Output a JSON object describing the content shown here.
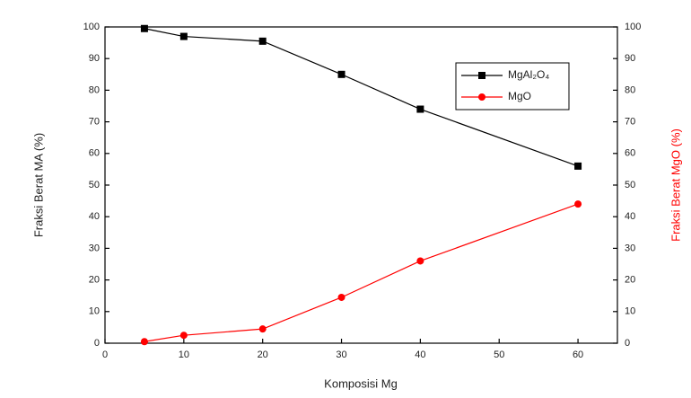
{
  "chart_data": {
    "type": "line",
    "x_label": "Komposisi Mg",
    "y_label": "Fraksi Berat MA (%)",
    "y2_label": "Fraksi Berat MgO (%)",
    "x": [
      5,
      10,
      20,
      30,
      40,
      60
    ],
    "series": [
      {
        "name": "MgAl₂O₄",
        "color": "#000000",
        "marker": "square",
        "values": [
          99.5,
          97,
          95.5,
          85,
          74,
          56
        ]
      },
      {
        "name": "MgO",
        "color": "#ff0000",
        "marker": "circle",
        "axis": "y2",
        "values": [
          0.5,
          2.5,
          4.5,
          14.5,
          26,
          44
        ]
      }
    ],
    "xlim": [
      0,
      65
    ],
    "xticks": [
      0,
      10,
      20,
      30,
      40,
      50,
      60
    ],
    "ylim": [
      0,
      100
    ],
    "yticks": [
      0,
      10,
      20,
      30,
      40,
      50,
      60,
      70,
      80,
      90,
      100
    ],
    "y2lim": [
      0,
      100
    ],
    "y2ticks": [
      0,
      10,
      20,
      30,
      40,
      50,
      60,
      70,
      80,
      90,
      100
    ],
    "y2_label_color": "#ff0000",
    "legend": "upper-right"
  }
}
